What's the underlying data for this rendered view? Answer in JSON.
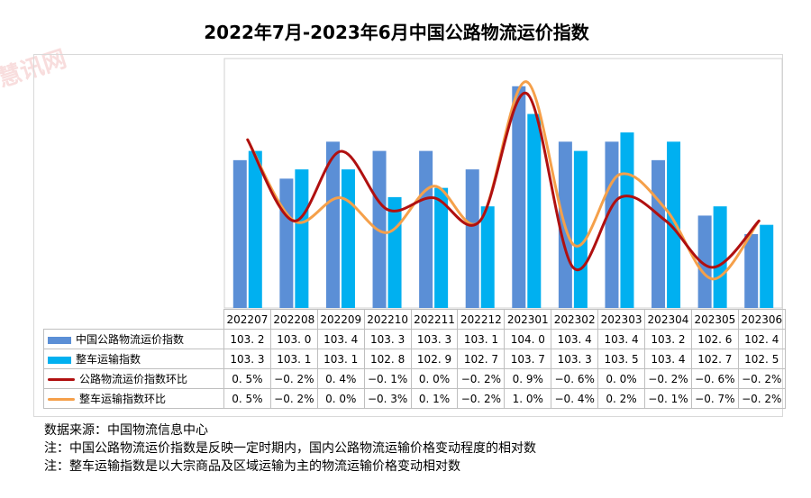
{
  "title": "2022年7月-2023年6月中国公路物流运价指数",
  "colors": {
    "bar1": "#5b8fd6",
    "bar2": "#00b0f0",
    "line1": "#b01010",
    "line2": "#f5a04a"
  },
  "chart_data": {
    "type": "bar",
    "categories": [
      "202207",
      "202208",
      "202209",
      "202210",
      "202211",
      "202212",
      "202301",
      "202302",
      "202303",
      "202304",
      "202305",
      "202306"
    ],
    "series": [
      {
        "name": "中国公路物流运价指数",
        "kind": "bar",
        "values": [
          103.2,
          103.0,
          103.4,
          103.3,
          103.3,
          103.1,
          104.0,
          103.4,
          103.4,
          103.2,
          102.6,
          102.4
        ]
      },
      {
        "name": "整车运输指数",
        "kind": "bar",
        "values": [
          103.3,
          103.1,
          103.1,
          102.8,
          102.9,
          102.7,
          103.7,
          103.3,
          103.5,
          103.4,
          102.7,
          102.5
        ]
      },
      {
        "name": "公路物流运价指数环比",
        "kind": "line",
        "values": [
          0.5,
          -0.2,
          0.4,
          -0.1,
          0.0,
          -0.2,
          0.9,
          -0.6,
          0.0,
          -0.2,
          -0.6,
          -0.2
        ]
      },
      {
        "name": "整车运输指数环比",
        "kind": "line",
        "values": [
          0.5,
          -0.2,
          0.0,
          -0.3,
          0.1,
          -0.2,
          1.0,
          -0.4,
          0.2,
          -0.1,
          -0.7,
          -0.2
        ]
      }
    ],
    "bar_axis_min": 101.6,
    "bar_axis_max": 104.3,
    "line_axis_min": -0.95,
    "line_axis_max": 1.2,
    "grid": false,
    "legend": "table"
  },
  "table": {
    "rows": [
      {
        "label": "中国公路物流运价指数",
        "cells": [
          "103. 2",
          "103. 0",
          "103. 4",
          "103. 3",
          "103. 3",
          "103. 1",
          "104. 0",
          "103. 4",
          "103. 4",
          "103. 2",
          "102. 6",
          "102. 4"
        ]
      },
      {
        "label": "整车运输指数",
        "cells": [
          "103. 3",
          "103. 1",
          "103. 1",
          "102. 8",
          "102. 9",
          "102. 7",
          "103. 7",
          "103. 3",
          "103. 5",
          "103. 4",
          "102. 7",
          "102. 5"
        ]
      },
      {
        "label": "公路物流运价指数环比",
        "cells": [
          "0. 5%",
          "−0. 2%",
          "0. 4%",
          "−0. 1%",
          "0. 0%",
          "−0. 2%",
          "0. 9%",
          "−0. 6%",
          "0. 0%",
          "−0. 2%",
          "−0. 6%",
          "−0. 2%"
        ]
      },
      {
        "label": "整车运输指数环比",
        "cells": [
          "0. 5%",
          "−0. 2%",
          "0. 0%",
          "−0. 3%",
          "0. 1%",
          "−0. 2%",
          "1. 0%",
          "−0. 4%",
          "0. 2%",
          "−0. 1%",
          "−0. 7%",
          "−0. 2%"
        ]
      }
    ]
  },
  "notes": [
    "数据来源：中国物流信息中心",
    "注：中国公路物流运价指数是反映一定时期内，国内公路物流运输价格变动程度的相对数",
    "注：整车运输指数是以大宗商品及区域运输为主的物流运输价格变动相对数"
  ],
  "watermark": "慧讯网"
}
